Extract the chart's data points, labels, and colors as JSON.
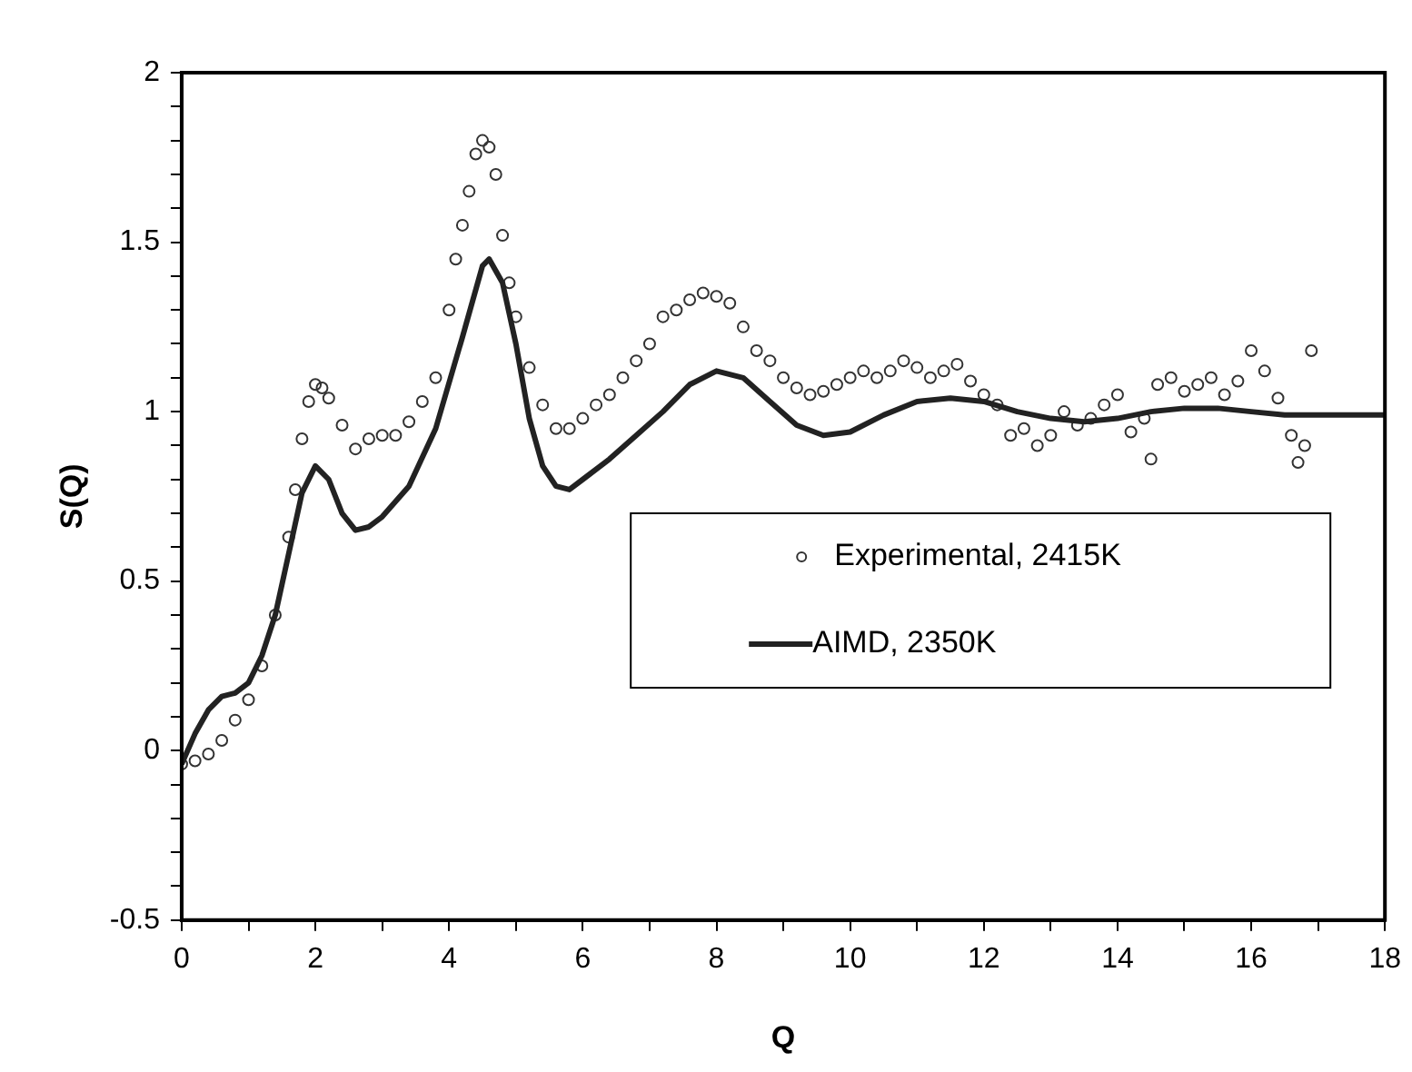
{
  "chart_data": {
    "type": "scatter",
    "xlabel": "Q",
    "ylabel": "S(Q)",
    "xlim": [
      0,
      18
    ],
    "ylim": [
      -0.5,
      2
    ],
    "xticks": [
      0,
      {
        "value": 1,
        "label": null
      },
      2,
      {
        "value": 3,
        "label": null
      },
      4,
      {
        "value": 5,
        "label": null
      },
      6,
      {
        "value": 7,
        "label": null
      },
      8,
      {
        "value": 9,
        "label": null
      },
      10,
      {
        "value": 11,
        "label": null
      },
      12,
      {
        "value": 13,
        "label": null
      },
      14,
      {
        "value": 15,
        "label": null
      },
      16,
      {
        "value": 17,
        "label": null
      },
      18
    ],
    "yticks": [
      -0.5,
      {
        "value": -0.4,
        "label": null
      },
      {
        "value": -0.3,
        "label": null
      },
      {
        "value": -0.2,
        "label": null
      },
      {
        "value": -0.1,
        "label": null
      },
      0,
      {
        "value": 0.1,
        "label": null
      },
      {
        "value": 0.2,
        "label": null
      },
      {
        "value": 0.3,
        "label": null
      },
      {
        "value": 0.4,
        "label": null
      },
      0.5,
      {
        "value": 0.6,
        "label": null
      },
      {
        "value": 0.7,
        "label": null
      },
      {
        "value": 0.8,
        "label": null
      },
      {
        "value": 0.9,
        "label": null
      },
      1,
      {
        "value": 1.1,
        "label": null
      },
      {
        "value": 1.2,
        "label": null
      },
      {
        "value": 1.3,
        "label": null
      },
      {
        "value": 1.4,
        "label": null
      },
      1.5,
      {
        "value": 1.6,
        "label": null
      },
      {
        "value": 1.7,
        "label": null
      },
      {
        "value": 1.8,
        "label": null
      },
      {
        "value": 1.9,
        "label": null
      },
      2
    ],
    "grid": false,
    "legend": "right",
    "series": [
      {
        "name": "Experimental, 2415K",
        "marker": "circle",
        "color": "#333333",
        "x": [
          0,
          0.2,
          0.4,
          0.6,
          0.8,
          1.0,
          1.2,
          1.4,
          1.6,
          1.7,
          1.8,
          1.9,
          2.0,
          2.1,
          2.2,
          2.4,
          2.6,
          2.8,
          3.0,
          3.2,
          3.4,
          3.6,
          3.8,
          4.0,
          4.1,
          4.2,
          4.3,
          4.4,
          4.5,
          4.6,
          4.7,
          4.8,
          4.9,
          5.0,
          5.2,
          5.4,
          5.6,
          5.8,
          6.0,
          6.2,
          6.4,
          6.6,
          6.8,
          7.0,
          7.2,
          7.4,
          7.6,
          7.8,
          8.0,
          8.2,
          8.4,
          8.6,
          8.8,
          9.0,
          9.2,
          9.4,
          9.6,
          9.8,
          10.0,
          10.2,
          10.4,
          10.6,
          10.8,
          11.0,
          11.2,
          11.4,
          11.6,
          11.8,
          12.0,
          12.2,
          12.4,
          12.6,
          12.8,
          13.0,
          13.2,
          13.4,
          13.6,
          13.8,
          14.0,
          14.2,
          14.4,
          14.5,
          14.6,
          14.8,
          15.0,
          15.2,
          15.4,
          15.6,
          15.8,
          16.0,
          16.2,
          16.4,
          16.6,
          16.7,
          16.8,
          16.9
        ],
        "values": [
          -0.04,
          -0.03,
          -0.01,
          0.03,
          0.09,
          0.15,
          0.25,
          0.4,
          0.63,
          0.77,
          0.92,
          1.03,
          1.08,
          1.07,
          1.04,
          0.96,
          0.89,
          0.92,
          0.93,
          0.93,
          0.97,
          1.03,
          1.1,
          1.3,
          1.45,
          1.55,
          1.65,
          1.76,
          1.8,
          1.78,
          1.7,
          1.52,
          1.38,
          1.28,
          1.13,
          1.02,
          0.95,
          0.95,
          0.98,
          1.02,
          1.05,
          1.1,
          1.15,
          1.2,
          1.28,
          1.3,
          1.33,
          1.35,
          1.34,
          1.32,
          1.25,
          1.18,
          1.15,
          1.1,
          1.07,
          1.05,
          1.06,
          1.08,
          1.1,
          1.12,
          1.1,
          1.12,
          1.15,
          1.13,
          1.1,
          1.12,
          1.14,
          1.09,
          1.05,
          1.02,
          0.93,
          0.95,
          0.9,
          0.93,
          1.0,
          0.96,
          0.98,
          1.02,
          1.05,
          0.94,
          0.98,
          0.86,
          1.08,
          1.1,
          1.06,
          1.08,
          1.1,
          1.05,
          1.09,
          1.18,
          1.12,
          1.04,
          0.93,
          0.85,
          0.9,
          1.18
        ]
      },
      {
        "name": "AIMD, 2350K",
        "type": "line",
        "marker": "none",
        "line_style": "solid",
        "color": "#222222",
        "x": [
          0,
          0.2,
          0.4,
          0.6,
          0.8,
          1.0,
          1.2,
          1.4,
          1.6,
          1.8,
          2.0,
          2.2,
          2.4,
          2.6,
          2.8,
          3.0,
          3.4,
          3.8,
          4.2,
          4.5,
          4.6,
          4.8,
          5.0,
          5.2,
          5.4,
          5.6,
          5.8,
          6.0,
          6.4,
          6.8,
          7.2,
          7.6,
          8.0,
          8.4,
          8.8,
          9.2,
          9.6,
          10.0,
          10.5,
          11.0,
          11.5,
          12.0,
          12.5,
          13.0,
          13.5,
          14.0,
          14.5,
          15.0,
          15.5,
          16.0,
          16.5,
          17.0,
          18.0
        ],
        "values": [
          -0.04,
          0.05,
          0.12,
          0.16,
          0.17,
          0.2,
          0.28,
          0.4,
          0.58,
          0.76,
          0.84,
          0.8,
          0.7,
          0.65,
          0.66,
          0.69,
          0.78,
          0.95,
          1.22,
          1.43,
          1.45,
          1.38,
          1.2,
          0.98,
          0.84,
          0.78,
          0.77,
          0.8,
          0.86,
          0.93,
          1.0,
          1.08,
          1.12,
          1.1,
          1.03,
          0.96,
          0.93,
          0.94,
          0.99,
          1.03,
          1.04,
          1.03,
          1.0,
          0.98,
          0.97,
          0.98,
          1.0,
          1.01,
          1.01,
          1.0,
          0.99,
          0.99,
          0.99
        ]
      }
    ]
  }
}
